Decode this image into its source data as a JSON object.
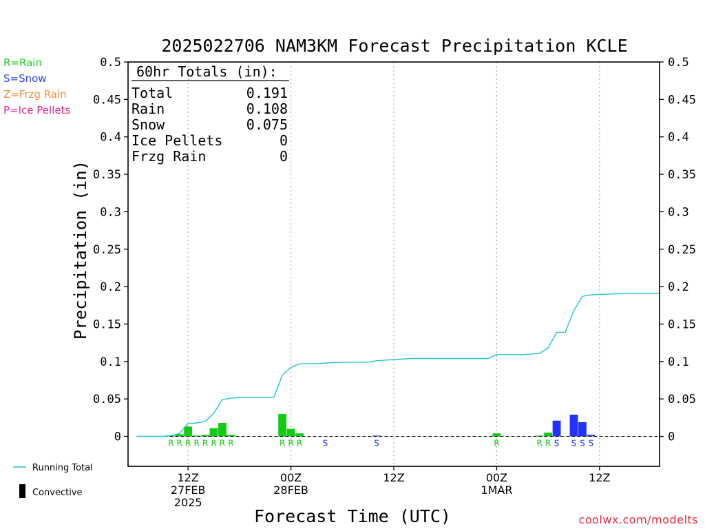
{
  "chart_data": {
    "type": "bar",
    "title": "2025022706 NAM3KM Forecast Precipitation KCLE",
    "xlabel": "Forecast Time (UTC)",
    "ylabel": "Precipitation (in)",
    "ylim": [
      -0.04,
      0.5
    ],
    "xlim_hours": [
      -1,
      61
    ],
    "y_ticks": [
      0,
      0.05,
      0.1,
      0.15,
      0.2,
      0.25,
      0.3,
      0.35,
      0.4,
      0.45,
      0.5
    ],
    "y_tick_labels": [
      "0",
      "0.05",
      "0.1",
      "0.15",
      "0.2",
      "0.25",
      "0.3",
      "0.35",
      "0.4",
      "0.45",
      "0.5"
    ],
    "x_ticks": [
      {
        "hour": 6,
        "lines": [
          "12Z",
          "27FEB",
          "2025"
        ]
      },
      {
        "hour": 18,
        "lines": [
          "00Z",
          "28FEB"
        ]
      },
      {
        "hour": 30,
        "lines": [
          "12Z"
        ]
      },
      {
        "hour": 42,
        "lines": [
          "00Z",
          "1MAR"
        ]
      },
      {
        "hour": 54,
        "lines": [
          "12Z"
        ]
      }
    ],
    "legend": [
      {
        "label": "R=Rain",
        "color": "#22cc22"
      },
      {
        "label": "S=Snow",
        "color": "#3344ee"
      },
      {
        "label": "Z=Frzg Rain",
        "color": "#f08c3c"
      },
      {
        "label": "P=Ice Pellets",
        "color": "#e02890"
      }
    ],
    "bottom_legend": {
      "running_total": "Running Total",
      "convective": "Convective"
    },
    "totals_header": "60hr Totals (in):",
    "totals": [
      {
        "label": "Total",
        "value": "0.191"
      },
      {
        "label": "Rain",
        "value": "0.108"
      },
      {
        "label": "Snow",
        "value": "0.075"
      },
      {
        "label": "Ice Pellets",
        "value": "0"
      },
      {
        "label": "Frzg Rain",
        "value": "0"
      }
    ],
    "colors": {
      "rain": "#11cc11",
      "snow": "#2233ff",
      "running_total": "#22c4cc",
      "axis": "#000000",
      "grid": "#999999"
    },
    "precip_series": [
      {
        "hour": 4,
        "value": 0.001,
        "type": "rain",
        "label": "R"
      },
      {
        "hour": 5,
        "value": 0.003,
        "type": "rain",
        "label": "R"
      },
      {
        "hour": 6,
        "value": 0.013,
        "type": "rain",
        "label": "R"
      },
      {
        "hour": 7,
        "value": 0.001,
        "type": "rain",
        "label": "R"
      },
      {
        "hour": 8,
        "value": 0.002,
        "type": "rain",
        "label": "R"
      },
      {
        "hour": 9,
        "value": 0.011,
        "type": "rain",
        "label": "R"
      },
      {
        "hour": 10,
        "value": 0.018,
        "type": "rain",
        "label": "R"
      },
      {
        "hour": 11,
        "value": 0.002,
        "type": "rain",
        "label": "R"
      },
      {
        "hour": 17,
        "value": 0.03,
        "type": "rain",
        "label": "R"
      },
      {
        "hour": 18,
        "value": 0.01,
        "type": "rain",
        "label": "R"
      },
      {
        "hour": 19,
        "value": 0.004,
        "type": "rain",
        "label": "R"
      },
      {
        "hour": 22,
        "value": 0.0,
        "type": "snow",
        "label": "S"
      },
      {
        "hour": 28,
        "value": 0.001,
        "type": "snow",
        "label": "S"
      },
      {
        "hour": 42,
        "value": 0.004,
        "type": "rain",
        "label": "R"
      },
      {
        "hour": 47,
        "value": 0.001,
        "type": "rain",
        "label": "R"
      },
      {
        "hour": 48,
        "value": 0.005,
        "type": "rain",
        "label": "R"
      },
      {
        "hour": 49,
        "value": 0.021,
        "type": "snow",
        "label": "S"
      },
      {
        "hour": 51,
        "value": 0.029,
        "type": "snow",
        "label": "S"
      },
      {
        "hour": 52,
        "value": 0.019,
        "type": "snow",
        "label": "S"
      },
      {
        "hour": 53,
        "value": 0.002,
        "type": "snow",
        "label": "S"
      }
    ],
    "running_total": [
      {
        "hour": 0,
        "value": 0.0
      },
      {
        "hour": 3,
        "value": 0.0
      },
      {
        "hour": 4,
        "value": 0.001
      },
      {
        "hour": 5,
        "value": 0.004
      },
      {
        "hour": 6,
        "value": 0.017
      },
      {
        "hour": 7,
        "value": 0.018
      },
      {
        "hour": 8,
        "value": 0.02
      },
      {
        "hour": 9,
        "value": 0.031
      },
      {
        "hour": 10,
        "value": 0.049
      },
      {
        "hour": 11,
        "value": 0.051
      },
      {
        "hour": 12,
        "value": 0.052
      },
      {
        "hour": 16,
        "value": 0.052
      },
      {
        "hour": 17,
        "value": 0.082
      },
      {
        "hour": 18,
        "value": 0.092
      },
      {
        "hour": 19,
        "value": 0.097
      },
      {
        "hour": 21,
        "value": 0.097
      },
      {
        "hour": 22,
        "value": 0.098
      },
      {
        "hour": 24,
        "value": 0.099
      },
      {
        "hour": 27,
        "value": 0.099
      },
      {
        "hour": 28,
        "value": 0.101
      },
      {
        "hour": 32,
        "value": 0.104
      },
      {
        "hour": 41,
        "value": 0.104
      },
      {
        "hour": 42,
        "value": 0.109
      },
      {
        "hour": 45,
        "value": 0.109
      },
      {
        "hour": 47,
        "value": 0.111
      },
      {
        "hour": 48,
        "value": 0.118
      },
      {
        "hour": 49,
        "value": 0.139
      },
      {
        "hour": 50,
        "value": 0.139
      },
      {
        "hour": 51,
        "value": 0.168
      },
      {
        "hour": 52,
        "value": 0.187
      },
      {
        "hour": 53,
        "value": 0.189
      },
      {
        "hour": 57,
        "value": 0.191
      },
      {
        "hour": 61,
        "value": 0.191
      }
    ]
  },
  "footer": {
    "credit": "coolwx.com/modelts"
  }
}
